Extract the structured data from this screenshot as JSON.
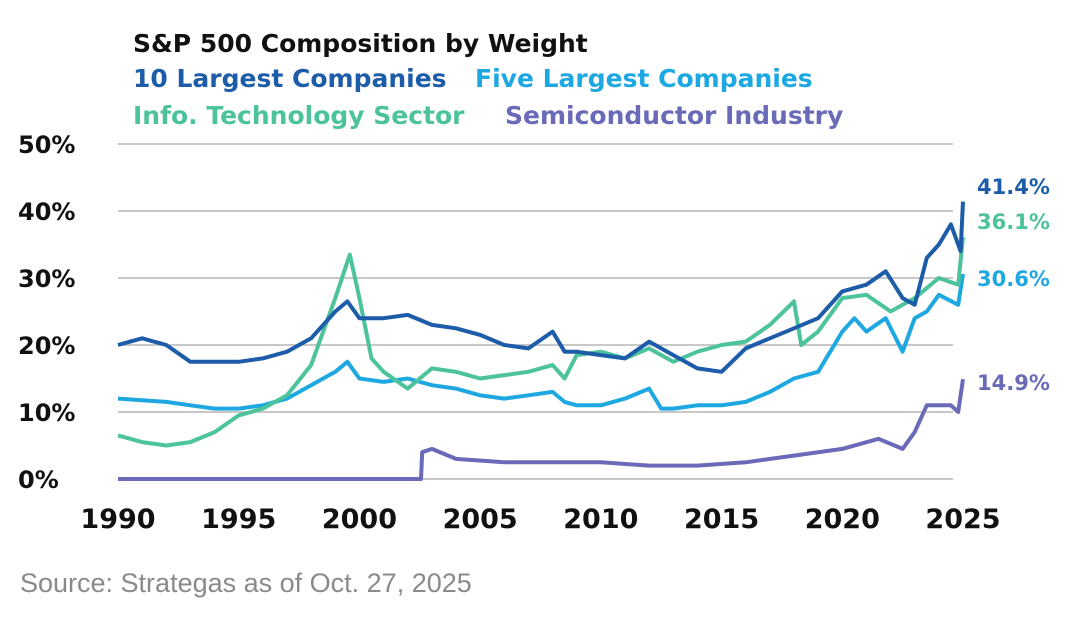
{
  "chart_data": {
    "type": "line",
    "title": "S&P 500 Composition by Weight",
    "xlabel": "",
    "ylabel": "",
    "xlim": [
      1990,
      2025
    ],
    "ylim": [
      0,
      50
    ],
    "grid": true,
    "legend_placement": "top",
    "x_ticks": [
      "1990",
      "1995",
      "2000",
      "2005",
      "2010",
      "2015",
      "2020",
      "2025"
    ],
    "y_ticks": [
      "0%",
      "10%",
      "20%",
      "30%",
      "40%",
      "50%"
    ],
    "series": [
      {
        "name": "10 Largest Companies",
        "color": "#1d5ca8",
        "end_label": "41.4%",
        "points": [
          [
            1990,
            20
          ],
          [
            1991,
            21
          ],
          [
            1992,
            20
          ],
          [
            1993,
            17.5
          ],
          [
            1994,
            17.5
          ],
          [
            1995,
            17.5
          ],
          [
            1996,
            18
          ],
          [
            1997,
            19
          ],
          [
            1998,
            21
          ],
          [
            1999,
            25
          ],
          [
            1999.5,
            26.5
          ],
          [
            2000,
            24
          ],
          [
            2001,
            24
          ],
          [
            2002,
            24.5
          ],
          [
            2003,
            23
          ],
          [
            2004,
            22.5
          ],
          [
            2005,
            21.5
          ],
          [
            2006,
            20
          ],
          [
            2007,
            19.5
          ],
          [
            2008,
            22
          ],
          [
            2008.5,
            19
          ],
          [
            2009,
            19
          ],
          [
            2010,
            18.5
          ],
          [
            2011,
            18
          ],
          [
            2012,
            20.5
          ],
          [
            2013,
            18.5
          ],
          [
            2014,
            16.5
          ],
          [
            2015,
            16
          ],
          [
            2016,
            19.5
          ],
          [
            2017,
            21
          ],
          [
            2018,
            22.5
          ],
          [
            2019,
            24
          ],
          [
            2020,
            28
          ],
          [
            2021,
            29
          ],
          [
            2021.8,
            31
          ],
          [
            2022.5,
            27
          ],
          [
            2023,
            26
          ],
          [
            2023.5,
            33
          ],
          [
            2024,
            35
          ],
          [
            2024.5,
            38
          ],
          [
            2024.9,
            34
          ],
          [
            2025,
            41.4
          ]
        ]
      },
      {
        "name": "Five Largest Companies",
        "color": "#1ea8e2",
        "end_label": "30.6%",
        "points": [
          [
            1990,
            12
          ],
          [
            1992,
            11.5
          ],
          [
            1993,
            11
          ],
          [
            1994,
            10.5
          ],
          [
            1995,
            10.5
          ],
          [
            1996,
            11
          ],
          [
            1997,
            12
          ],
          [
            1998,
            14
          ],
          [
            1999,
            16
          ],
          [
            1999.5,
            17.5
          ],
          [
            2000,
            15
          ],
          [
            2001,
            14.5
          ],
          [
            2002,
            15
          ],
          [
            2003,
            14
          ],
          [
            2004,
            13.5
          ],
          [
            2005,
            12.5
          ],
          [
            2006,
            12
          ],
          [
            2007,
            12.5
          ],
          [
            2008,
            13
          ],
          [
            2008.5,
            11.5
          ],
          [
            2009,
            11
          ],
          [
            2010,
            11
          ],
          [
            2011,
            12
          ],
          [
            2012,
            13.5
          ],
          [
            2012.5,
            10.5
          ],
          [
            2013,
            10.5
          ],
          [
            2014,
            11
          ],
          [
            2015,
            11
          ],
          [
            2016,
            11.5
          ],
          [
            2017,
            13
          ],
          [
            2018,
            15
          ],
          [
            2019,
            16
          ],
          [
            2020,
            22
          ],
          [
            2020.5,
            24
          ],
          [
            2021,
            22
          ],
          [
            2021.8,
            24
          ],
          [
            2022.5,
            19
          ],
          [
            2023,
            24
          ],
          [
            2023.5,
            25
          ],
          [
            2024,
            27.5
          ],
          [
            2024.8,
            26
          ],
          [
            2025,
            30.6
          ]
        ]
      },
      {
        "name": "Info. Technology Sector",
        "color": "#4cc39b",
        "end_label": "36.1%",
        "points": [
          [
            1990,
            6.5
          ],
          [
            1991,
            5.5
          ],
          [
            1992,
            5
          ],
          [
            1993,
            5.5
          ],
          [
            1994,
            7
          ],
          [
            1995,
            9.5
          ],
          [
            1996,
            10.5
          ],
          [
            1997,
            12.5
          ],
          [
            1998,
            17
          ],
          [
            1999,
            27
          ],
          [
            1999.6,
            33.5
          ],
          [
            2000,
            27
          ],
          [
            2000.5,
            18
          ],
          [
            2001,
            16
          ],
          [
            2002,
            13.5
          ],
          [
            2003,
            16.5
          ],
          [
            2004,
            16
          ],
          [
            2005,
            15
          ],
          [
            2006,
            15.5
          ],
          [
            2007,
            16
          ],
          [
            2008,
            17
          ],
          [
            2008.5,
            15
          ],
          [
            2009,
            18.5
          ],
          [
            2010,
            19
          ],
          [
            2011,
            18
          ],
          [
            2012,
            19.5
          ],
          [
            2013,
            17.5
          ],
          [
            2014,
            19
          ],
          [
            2015,
            20
          ],
          [
            2016,
            20.5
          ],
          [
            2017,
            23
          ],
          [
            2018,
            26.5
          ],
          [
            2018.3,
            20
          ],
          [
            2019,
            22
          ],
          [
            2020,
            27
          ],
          [
            2021,
            27.5
          ],
          [
            2022,
            25
          ],
          [
            2022.5,
            26
          ],
          [
            2023,
            27
          ],
          [
            2024,
            30
          ],
          [
            2024.8,
            29
          ],
          [
            2025,
            36.1
          ]
        ]
      },
      {
        "name": "Semiconductor Industry",
        "color": "#6a6ab8",
        "end_label": "14.9%",
        "points": [
          [
            1990,
            0
          ],
          [
            2002.55,
            0
          ],
          [
            2002.6,
            4
          ],
          [
            2003,
            4.5
          ],
          [
            2004,
            3
          ],
          [
            2006,
            2.5
          ],
          [
            2008,
            2.5
          ],
          [
            2010,
            2.5
          ],
          [
            2012,
            2
          ],
          [
            2014,
            2
          ],
          [
            2016,
            2.5
          ],
          [
            2018,
            3.5
          ],
          [
            2020,
            4.5
          ],
          [
            2021.5,
            6
          ],
          [
            2022.5,
            4.5
          ],
          [
            2023,
            7
          ],
          [
            2023.5,
            11
          ],
          [
            2024.5,
            11
          ],
          [
            2024.8,
            10
          ],
          [
            2025,
            14.9
          ]
        ]
      }
    ],
    "source": "Source: Strategas as of Oct. 27, 2025"
  }
}
